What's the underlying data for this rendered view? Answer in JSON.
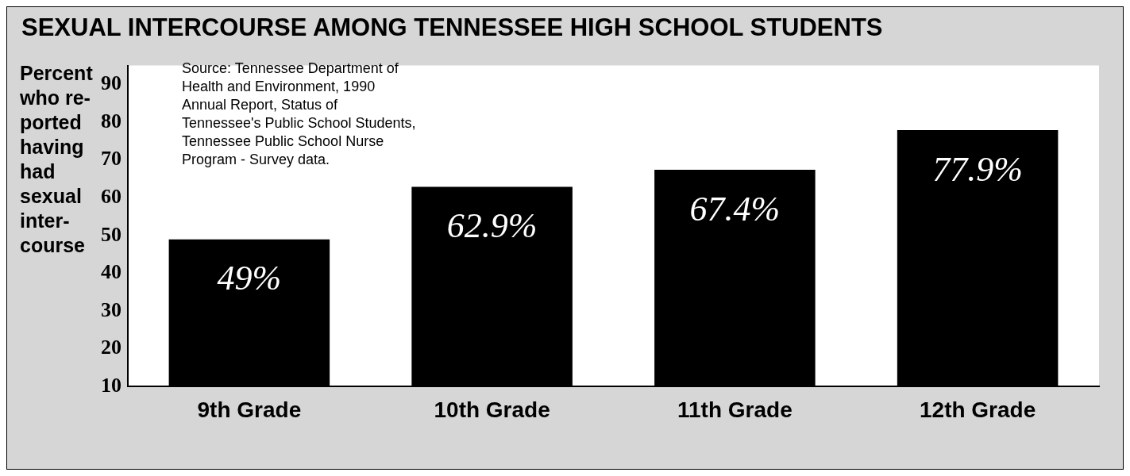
{
  "chart_data": {
    "type": "bar",
    "title": "SEXUAL INTERCOURSE AMONG TENNESSEE HIGH SCHOOL STUDENTS",
    "ylabel": "Percent who re-ported having had sexual inter-course",
    "categories": [
      "9th Grade",
      "10th Grade",
      "11th Grade",
      "12th Grade"
    ],
    "values": [
      49,
      62.9,
      67.4,
      77.9
    ],
    "value_labels": [
      "49%",
      "62.9%",
      "67.4%",
      "77.9%"
    ],
    "color": "#000000",
    "ylim": [
      10,
      95
    ],
    "yticks": [
      10,
      20,
      30,
      40,
      50,
      60,
      70,
      80,
      90
    ],
    "grid": false,
    "legend": false,
    "annotations": [
      "Source: Tennessee Department of Health and Environment, 1990 Annual Report, Status of Tennessee's Public School Students, Tennessee Public School Nurse Program - Survey data."
    ]
  }
}
